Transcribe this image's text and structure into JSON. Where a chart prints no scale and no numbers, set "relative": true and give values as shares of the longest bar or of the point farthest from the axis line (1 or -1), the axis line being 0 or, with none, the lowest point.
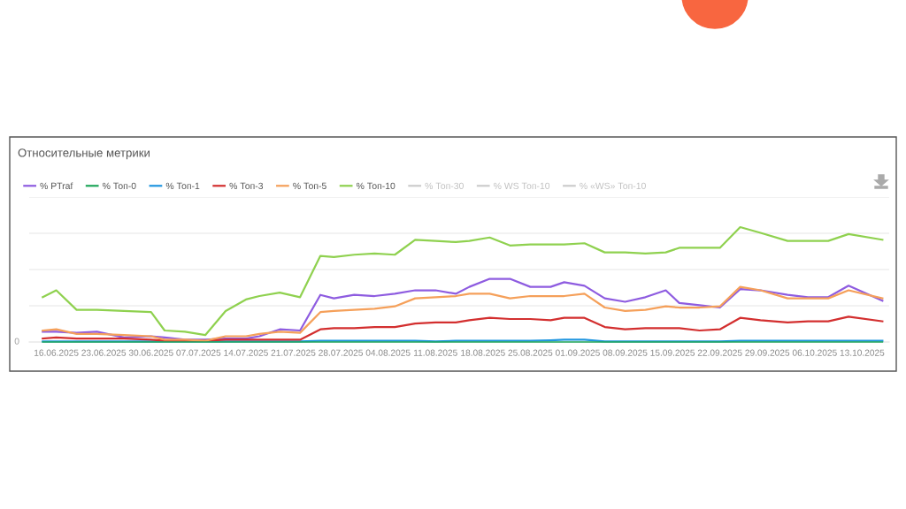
{
  "chart_data": {
    "type": "line",
    "title": "Относительные метрики",
    "relative": true,
    "grid": "y",
    "legend": "top left",
    "marker": "none",
    "line_style": "solid",
    "x": [
      "2025-06-14",
      "2025-06-16",
      "2025-06-19",
      "2025-06-22",
      "2025-06-26",
      "2025-06-30",
      "2025-07-02",
      "2025-07-05",
      "2025-07-08",
      "2025-07-11",
      "2025-07-14",
      "2025-07-16",
      "2025-07-19",
      "2025-07-22",
      "2025-07-25",
      "2025-07-27",
      "2025-07-30",
      "2025-08-02",
      "2025-08-05",
      "2025-08-08",
      "2025-08-11",
      "2025-08-14",
      "2025-08-16",
      "2025-08-19",
      "2025-08-22",
      "2025-08-25",
      "2025-08-28",
      "2025-08-30",
      "2025-09-02",
      "2025-09-05",
      "2025-09-08",
      "2025-09-11",
      "2025-09-14",
      "2025-09-16",
      "2025-09-19",
      "2025-09-22",
      "2025-09-25",
      "2025-09-28",
      "2025-10-02",
      "2025-10-05",
      "2025-10-08",
      "2025-10-11",
      "2025-10-16"
    ],
    "xticks": [
      {
        "value": "2025-06-16",
        "label": "16.06.2025"
      },
      {
        "value": "2025-06-23",
        "label": "23.06.2025"
      },
      {
        "value": "2025-06-30",
        "label": "30.06.2025"
      },
      {
        "value": "2025-07-07",
        "label": "07.07.2025"
      },
      {
        "value": "2025-07-14",
        "label": "14.07.2025"
      },
      {
        "value": "2025-07-21",
        "label": "21.07.2025"
      },
      {
        "value": "2025-07-28",
        "label": "28.07.2025"
      },
      {
        "value": "2025-08-04",
        "label": "04.08.2025"
      },
      {
        "value": "2025-08-11",
        "label": "11.08.2025"
      },
      {
        "value": "2025-08-18",
        "label": "18.08.2025"
      },
      {
        "value": "2025-08-25",
        "label": "25.08.2025"
      },
      {
        "value": "2025-09-01",
        "label": "01.09.2025"
      },
      {
        "value": "2025-09-08",
        "label": "08.09.2025"
      },
      {
        "value": "2025-09-15",
        "label": "15.09.2025"
      },
      {
        "value": "2025-09-22",
        "label": "22.09.2025"
      },
      {
        "value": "2025-09-29",
        "label": "29.09.2025"
      },
      {
        "value": "2025-10-06",
        "label": "06.10.2025"
      },
      {
        "value": "2025-10-13",
        "label": "13.10.2025"
      }
    ],
    "annotations": [
      "0"
    ],
    "xlim": [
      "2025-06-12",
      "2025-10-17"
    ],
    "series": [
      {
        "name": "% PTraf",
        "color": "#8e5ce0",
        "values": [
          0.09,
          0.09,
          0.08,
          0.09,
          0.04,
          0.05,
          0.04,
          0.02,
          0.02,
          0.03,
          0.03,
          0.05,
          0.11,
          0.1,
          0.41,
          0.38,
          0.41,
          0.4,
          0.42,
          0.45,
          0.45,
          0.42,
          0.48,
          0.55,
          0.55,
          0.48,
          0.48,
          0.52,
          0.49,
          0.38,
          0.35,
          0.39,
          0.45,
          0.34,
          0.32,
          0.3,
          0.46,
          0.45,
          0.41,
          0.39,
          0.39,
          0.49,
          0.36
        ]
      },
      {
        "name": "% Топ-0",
        "color": "#1fa65a",
        "values": [
          0,
          0,
          0,
          0,
          0,
          0,
          0,
          0,
          0,
          0,
          0,
          0,
          0,
          0,
          0,
          0,
          0,
          0,
          0,
          0,
          0,
          0,
          0,
          0,
          0,
          0,
          0,
          0,
          0,
          0,
          0,
          0,
          0,
          0,
          0,
          0,
          0,
          0,
          0,
          0,
          0,
          0,
          0
        ]
      },
      {
        "name": "% Топ-1",
        "color": "#2196e0",
        "values": [
          0.005,
          0.005,
          0.005,
          0.005,
          0.005,
          0.005,
          0.005,
          0.005,
          0.005,
          0.005,
          0.005,
          0.005,
          0.005,
          0.005,
          0.01,
          0.01,
          0.01,
          0.01,
          0.01,
          0.01,
          0.005,
          0.01,
          0.01,
          0.01,
          0.01,
          0.01,
          0.015,
          0.02,
          0.02,
          0.005,
          0.005,
          0.005,
          0.005,
          0.005,
          0.005,
          0.005,
          0.01,
          0.01,
          0.01,
          0.01,
          0.01,
          0.01,
          0.01
        ]
      },
      {
        "name": "% Топ-3",
        "color": "#d32f2f",
        "values": [
          0.03,
          0.04,
          0.03,
          0.03,
          0.03,
          0.02,
          0.01,
          0.01,
          0.01,
          0.02,
          0.02,
          0.02,
          0.02,
          0.02,
          0.11,
          0.12,
          0.12,
          0.13,
          0.13,
          0.16,
          0.17,
          0.17,
          0.19,
          0.21,
          0.2,
          0.2,
          0.19,
          0.21,
          0.21,
          0.13,
          0.11,
          0.12,
          0.12,
          0.12,
          0.1,
          0.11,
          0.21,
          0.19,
          0.17,
          0.18,
          0.18,
          0.22,
          0.18
        ]
      },
      {
        "name": "% Топ-5",
        "color": "#f5a05a",
        "values": [
          0.1,
          0.11,
          0.07,
          0.07,
          0.06,
          0.05,
          0.02,
          0.02,
          0.01,
          0.05,
          0.05,
          0.07,
          0.09,
          0.08,
          0.26,
          0.27,
          0.28,
          0.29,
          0.31,
          0.38,
          0.39,
          0.4,
          0.42,
          0.42,
          0.38,
          0.4,
          0.4,
          0.4,
          0.42,
          0.3,
          0.27,
          0.28,
          0.31,
          0.3,
          0.3,
          0.31,
          0.48,
          0.45,
          0.38,
          0.38,
          0.38,
          0.45,
          0.38
        ]
      },
      {
        "name": "% Топ-10",
        "color": "#8fd14f",
        "values": [
          0.39,
          0.45,
          0.28,
          0.28,
          0.27,
          0.26,
          0.1,
          0.09,
          0.06,
          0.27,
          0.37,
          0.4,
          0.43,
          0.39,
          0.75,
          0.74,
          0.76,
          0.77,
          0.76,
          0.89,
          0.88,
          0.87,
          0.88,
          0.91,
          0.84,
          0.85,
          0.85,
          0.85,
          0.86,
          0.78,
          0.78,
          0.77,
          0.78,
          0.82,
          0.82,
          0.82,
          1,
          0.95,
          0.88,
          0.88,
          0.88,
          0.94,
          0.89
        ]
      },
      {
        "name": "% Топ-30",
        "color": "#cccccc",
        "values": [
          null,
          null,
          null,
          null,
          null,
          null,
          null,
          null,
          null,
          null,
          null,
          null,
          null,
          null,
          null,
          null,
          null,
          null,
          null,
          null,
          null,
          null,
          null,
          null,
          null,
          null,
          null,
          null,
          null,
          null,
          null,
          null,
          null,
          null,
          null,
          null,
          null,
          null,
          null,
          null,
          null,
          null,
          null
        ]
      },
      {
        "name": "% WS Топ-10",
        "color": "#cccccc",
        "values": [
          null,
          null,
          null,
          null,
          null,
          null,
          null,
          null,
          null,
          null,
          null,
          null,
          null,
          null,
          null,
          null,
          null,
          null,
          null,
          null,
          null,
          null,
          null,
          null,
          null,
          null,
          null,
          null,
          null,
          null,
          null,
          null,
          null,
          null,
          null,
          null,
          null,
          null,
          null,
          null,
          null,
          null,
          null
        ]
      },
      {
        "name": "% «WS» Топ-10",
        "color": "#cccccc",
        "values": [
          null,
          null,
          null,
          null,
          null,
          null,
          null,
          null,
          null,
          null,
          null,
          null,
          null,
          null,
          null,
          null,
          null,
          null,
          null,
          null,
          null,
          null,
          null,
          null,
          null,
          null,
          null,
          null,
          null,
          null,
          null,
          null,
          null,
          null,
          null,
          null,
          null,
          null,
          null,
          null,
          null,
          null,
          null
        ]
      }
    ]
  }
}
